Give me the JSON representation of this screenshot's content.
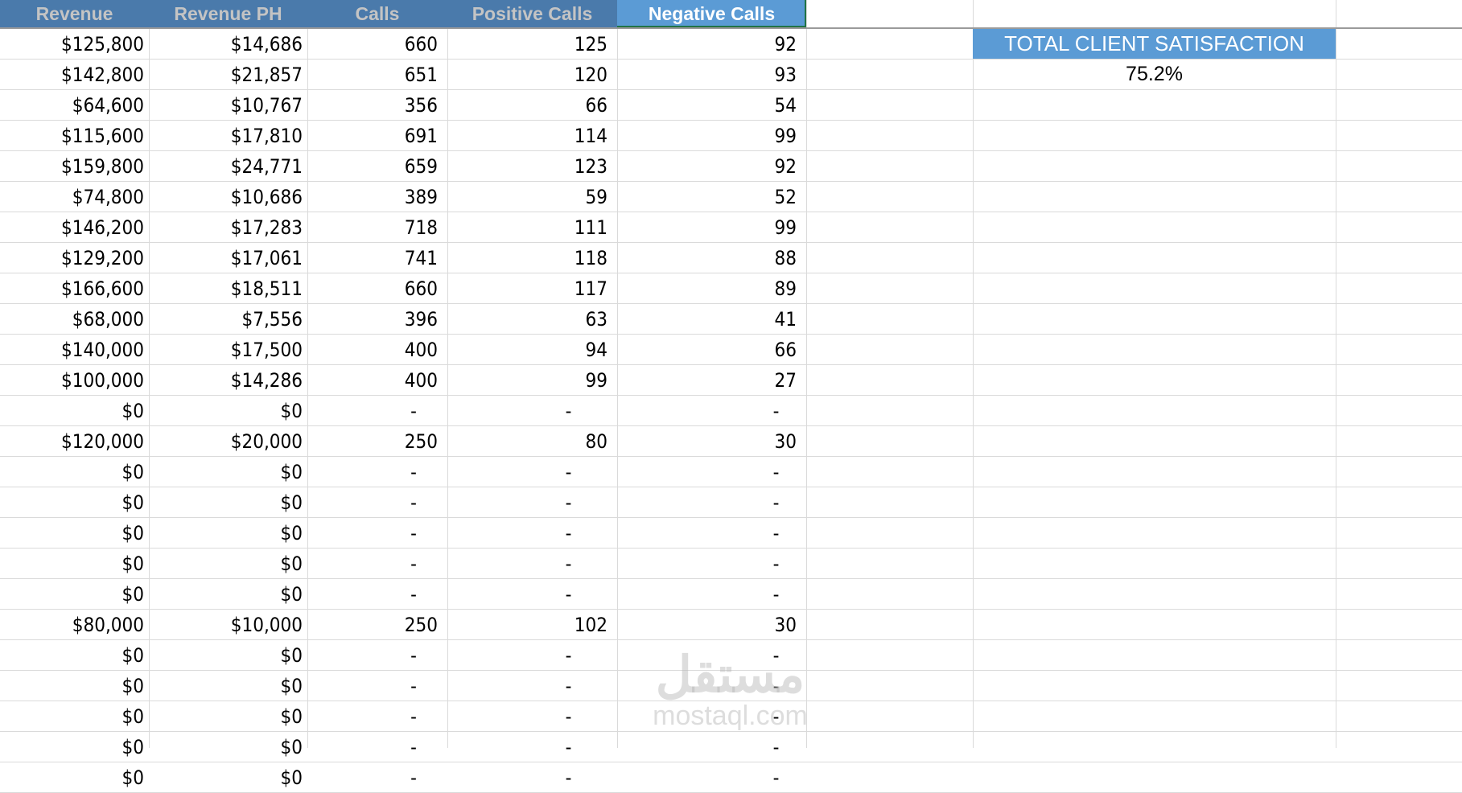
{
  "headers": [
    "Revenue",
    "Revenue PH",
    "Calls",
    "Positive Calls",
    "Negative Calls"
  ],
  "selected_header": "Negative Calls",
  "rows": [
    [
      "$125,800",
      "$14,686",
      "660",
      "125",
      "92"
    ],
    [
      "$142,800",
      "$21,857",
      "651",
      "120",
      "93"
    ],
    [
      "$64,600",
      "$10,767",
      "356",
      "66",
      "54"
    ],
    [
      "$115,600",
      "$17,810",
      "691",
      "114",
      "99"
    ],
    [
      "$159,800",
      "$24,771",
      "659",
      "123",
      "92"
    ],
    [
      "$74,800",
      "$10,686",
      "389",
      "59",
      "52"
    ],
    [
      "$146,200",
      "$17,283",
      "718",
      "111",
      "99"
    ],
    [
      "$129,200",
      "$17,061",
      "741",
      "118",
      "88"
    ],
    [
      "$166,600",
      "$18,511",
      "660",
      "117",
      "89"
    ],
    [
      "$68,000",
      "$7,556",
      "396",
      "63",
      "41"
    ],
    [
      "$140,000",
      "$17,500",
      "400",
      "94",
      "66"
    ],
    [
      "$100,000",
      "$14,286",
      "400",
      "99",
      "27"
    ],
    [
      "$0",
      "$0",
      "-",
      "-",
      "-"
    ],
    [
      "$120,000",
      "$20,000",
      "250",
      "80",
      "30"
    ],
    [
      "$0",
      "$0",
      "-",
      "-",
      "-"
    ],
    [
      "$0",
      "$0",
      "-",
      "-",
      "-"
    ],
    [
      "$0",
      "$0",
      "-",
      "-",
      "-"
    ],
    [
      "$0",
      "$0",
      "-",
      "-",
      "-"
    ],
    [
      "$0",
      "$0",
      "-",
      "-",
      "-"
    ],
    [
      "$80,000",
      "$10,000",
      "250",
      "102",
      "30"
    ],
    [
      "$0",
      "$0",
      "-",
      "-",
      "-"
    ],
    [
      "$0",
      "$0",
      "-",
      "-",
      "-"
    ],
    [
      "$0",
      "$0",
      "-",
      "-",
      "-"
    ],
    [
      "$0",
      "$0",
      "-",
      "-",
      "-"
    ],
    [
      "$0",
      "$0",
      "-",
      "-",
      "-"
    ]
  ],
  "satisfaction": {
    "title": "TOTAL CLIENT SATISFACTION",
    "value": "75.2%"
  },
  "watermark": {
    "arabic": "مستقل",
    "latin": "mostaql.com"
  },
  "colors": {
    "header_bg": "#4a7aab",
    "selected_header_bg": "#5b9bd5",
    "header_text": "#c4c4c4",
    "selection_border": "#217346"
  }
}
